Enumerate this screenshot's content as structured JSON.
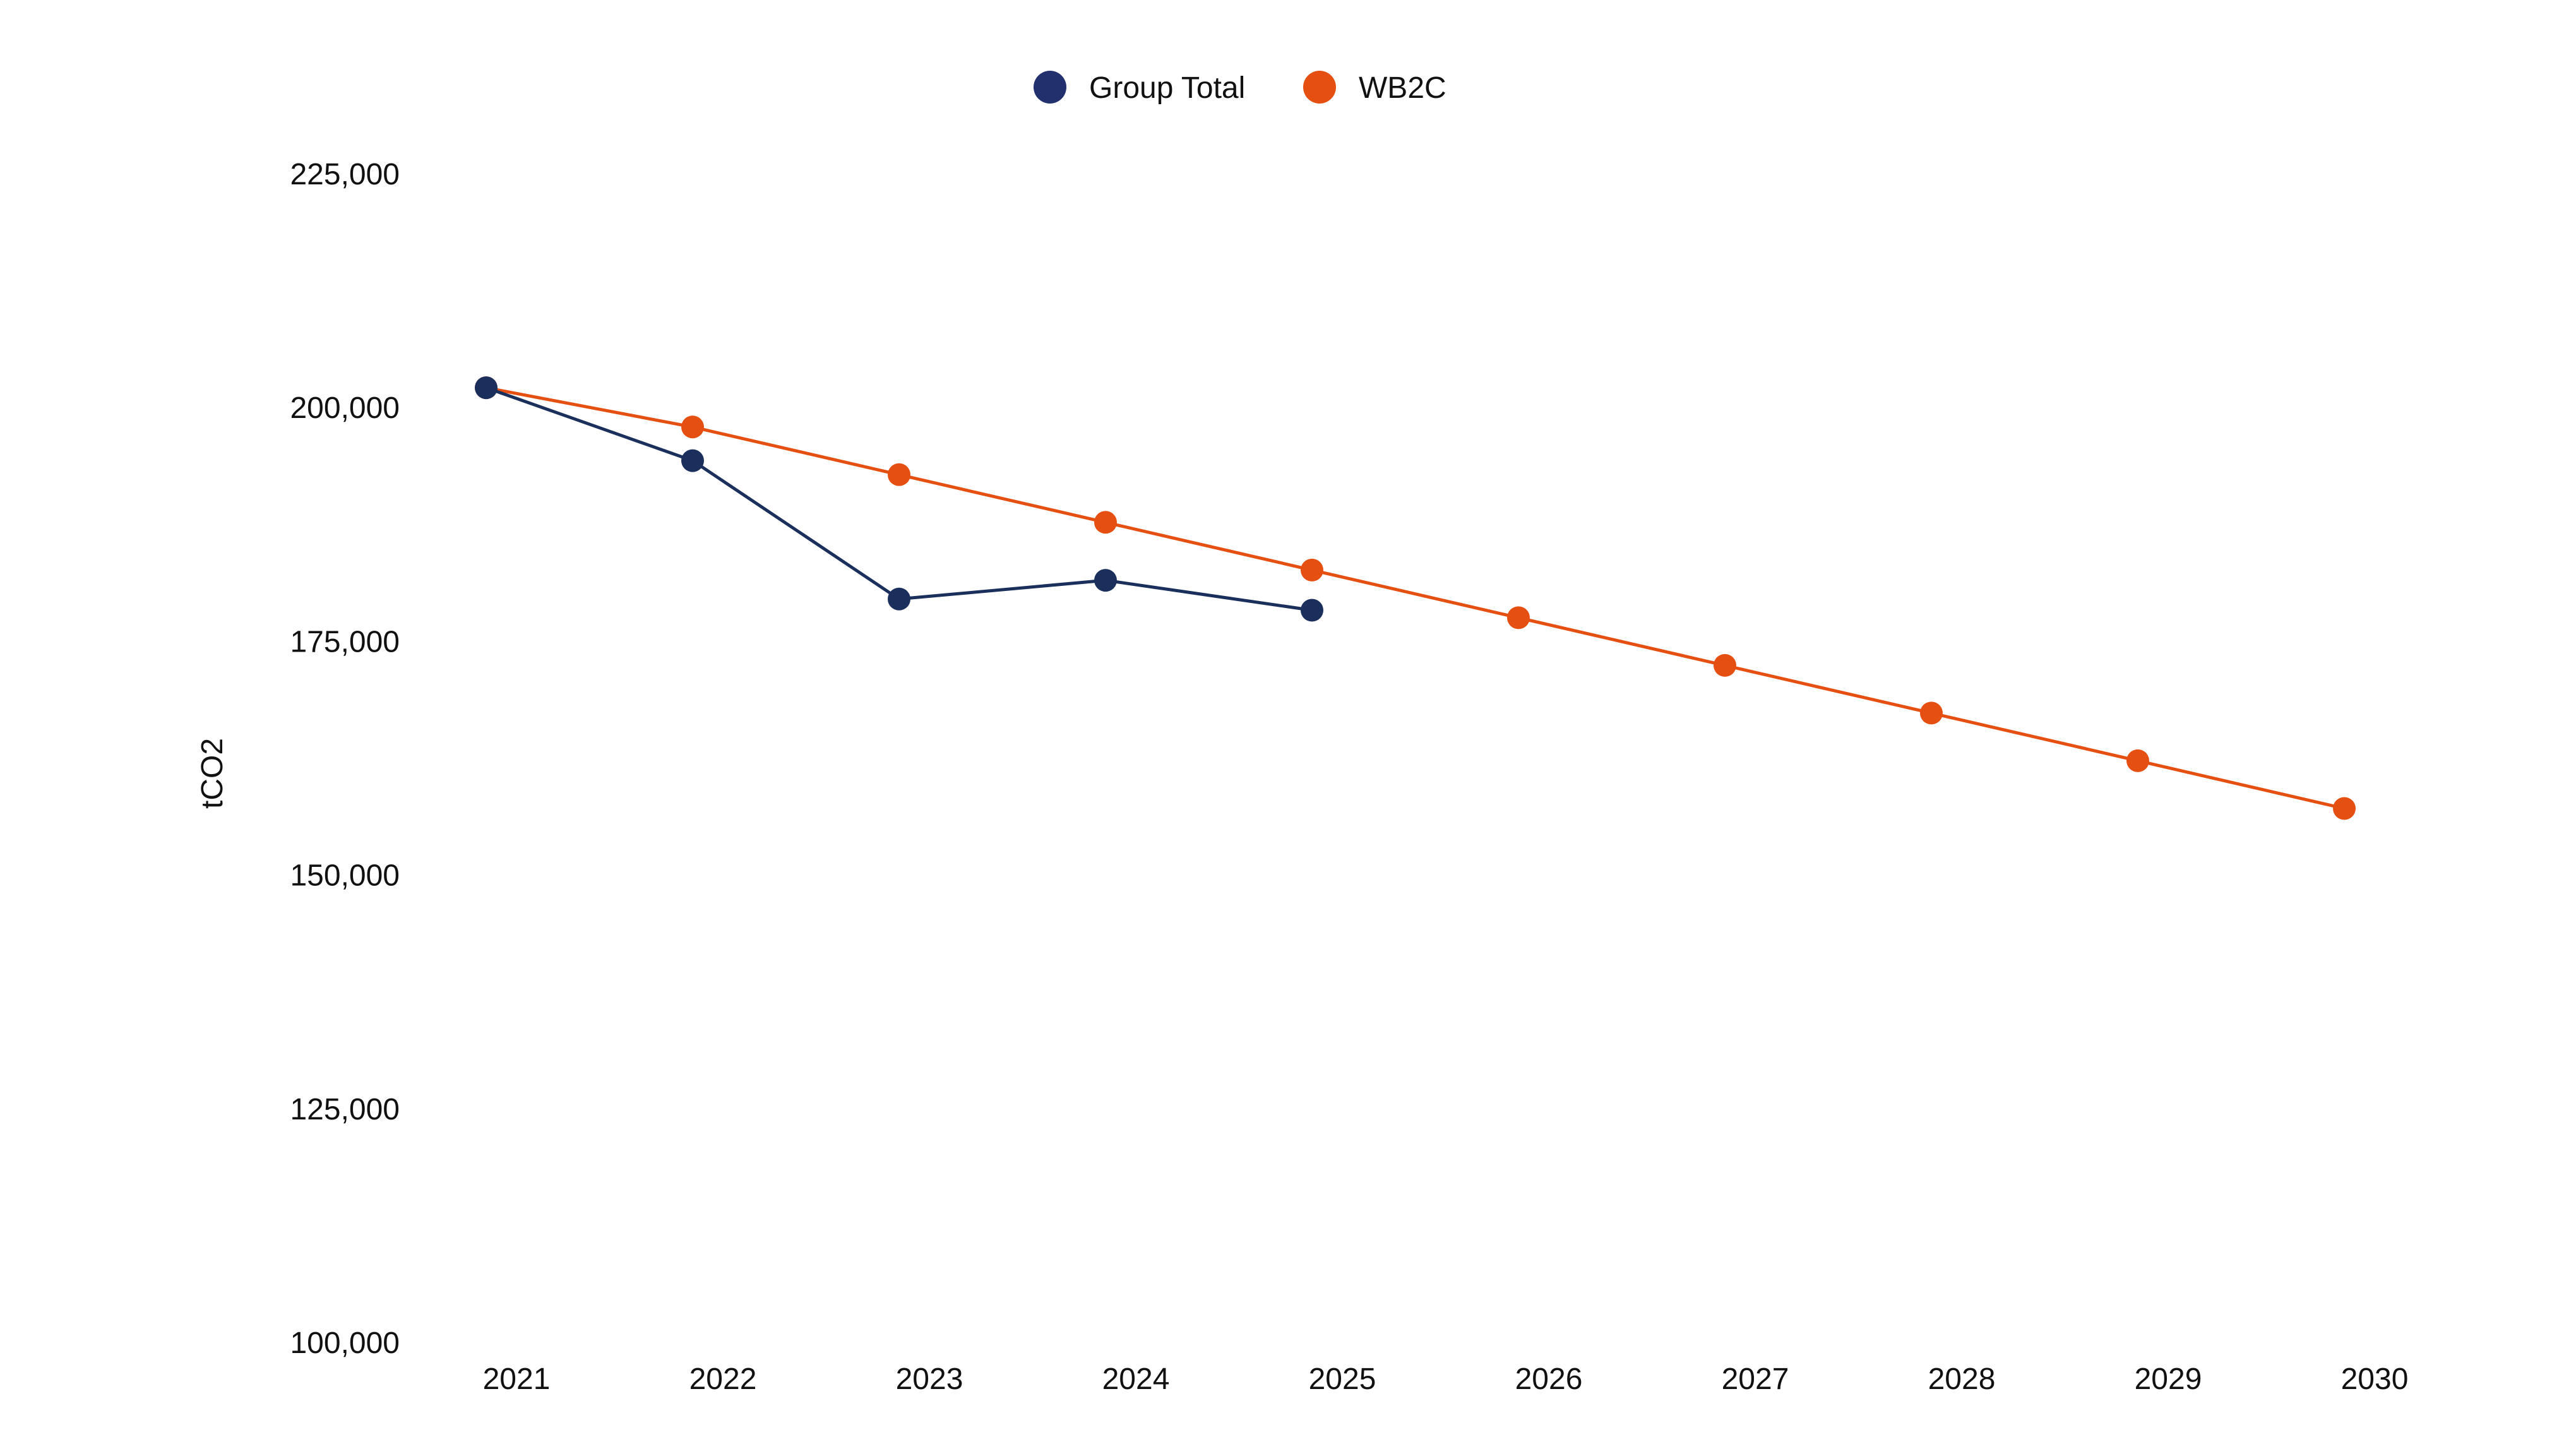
{
  "chart_data": {
    "type": "line",
    "title": "",
    "xlabel": "",
    "ylabel": "tCO2",
    "x": [
      "2021",
      "2022",
      "2023",
      "2024",
      "2025",
      "2026",
      "2027",
      "2028",
      "2029",
      "2030"
    ],
    "ylim": [
      100000,
      225000
    ],
    "yticks": [
      100000,
      125000,
      150000,
      175000,
      200000,
      225000
    ],
    "ytick_labels": [
      "100,000",
      "125,000",
      "150,000",
      "175,000",
      "200,000",
      "225,000"
    ],
    "grid": false,
    "legend_position": "top-center",
    "series": [
      {
        "name": "Group Total",
        "color": "#1a2f5c",
        "legend_color": "#22306e",
        "values": [
          202100,
          194300,
          179500,
          181500,
          178300,
          null,
          null,
          null,
          null,
          null
        ]
      },
      {
        "name": "WB2C",
        "color": "#e55012",
        "legend_color": "#e55012",
        "values": [
          202100,
          197900,
          192800,
          187700,
          182600,
          177500,
          172400,
          167300,
          162200,
          157100
        ]
      }
    ]
  }
}
